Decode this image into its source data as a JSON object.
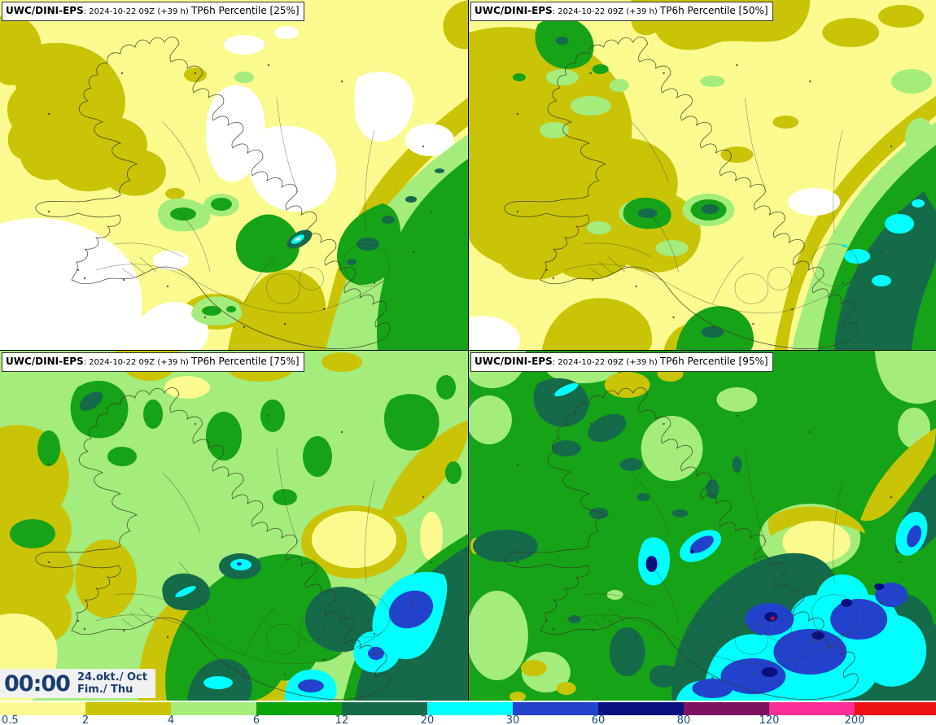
{
  "panels": [
    {
      "model": "UWC/DINI-EPS",
      "runinfo": ": 2024-10-22 09Z (+39 h) ",
      "tail": "TP6h Percentile [25%]",
      "percentile": "25%"
    },
    {
      "model": "UWC/DINI-EPS",
      "runinfo": ": 2024-10-22 09Z (+39 h) ",
      "tail": "TP6h Percentile [50%]",
      "percentile": "50%"
    },
    {
      "model": "UWC/DINI-EPS",
      "runinfo": ": 2024-10-22 09Z (+39 h) ",
      "tail": "TP6h Percentile [75%]",
      "percentile": "75%"
    },
    {
      "model": "UWC/DINI-EPS",
      "runinfo": ": 2024-10-22 09Z (+39 h) ",
      "tail": "TP6h Percentile [95%]",
      "percentile": "95%"
    }
  ],
  "valid": {
    "time": "00:00",
    "date_line1": "24.okt./ Oct",
    "date_line2": "Fim./ Thu",
    "text_color": "#1B3D6E",
    "bg": "#F1F1F1"
  },
  "colorbar": {
    "ticks": [
      "0.5",
      "2",
      "4",
      "6",
      "12",
      "20",
      "30",
      "60",
      "80",
      "120",
      "200"
    ],
    "segment_colors": [
      "#FBFB91",
      "#C9C408",
      "#A4EC7C",
      "#0BA40B",
      "#156A4A",
      "#00FFFF",
      "#2242CC",
      "#0A0F80",
      "#7D1263",
      "#FB2D96",
      "#EC1214"
    ],
    "text_color": "#1B4B7C"
  },
  "map_colors": {
    "white": "#FFFFFF",
    "paleyellow": "#FAFA8F",
    "olive": "#C9C408",
    "lightgreen": "#A4EC7C",
    "green": "#17A317",
    "teal": "#156A4A",
    "cyan": "#00FFFF",
    "blue": "#2242CC",
    "navy": "#0A0F80",
    "crimson": "#B5114C",
    "coast": "#3A3A28"
  }
}
